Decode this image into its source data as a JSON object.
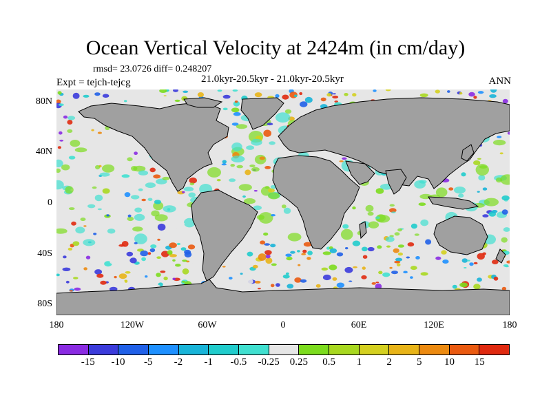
{
  "title": "Ocean Vertical Velocity at 2424m (in cm/day)",
  "stats": "rmsd= 23.0726 diff= 0.248207",
  "period": "21.0kyr-20.5kyr - 21.0kyr-20.5kyr",
  "experiment": "Expt = tejch-tejcg",
  "season": "ANN",
  "axes": {
    "lat_labels": [
      "80N",
      "40N",
      "0",
      "40S",
      "80S"
    ],
    "lon_labels": [
      "180",
      "120W",
      "60W",
      "0",
      "60E",
      "120E",
      "180"
    ]
  },
  "colorbar": {
    "labels": [
      "-15",
      "-10",
      "-5",
      "-2",
      "-1",
      "-0.5",
      "-0.25",
      "0.25",
      "0.5",
      "1",
      "2",
      "5",
      "10",
      "15"
    ],
    "colors": [
      "#8a2be2",
      "#3b3bdb",
      "#2060e8",
      "#1e90ff",
      "#18b4d8",
      "#20cccc",
      "#40e0d0",
      "#e6e6e6",
      "#7cdc1e",
      "#a8d820",
      "#d4d020",
      "#e8b418",
      "#ec8a10",
      "#ea5a10",
      "#e02a10"
    ]
  },
  "map_colors": {
    "land": "#a0a0a0",
    "neutral": "#e6e6e6",
    "coast": "#000000"
  }
}
